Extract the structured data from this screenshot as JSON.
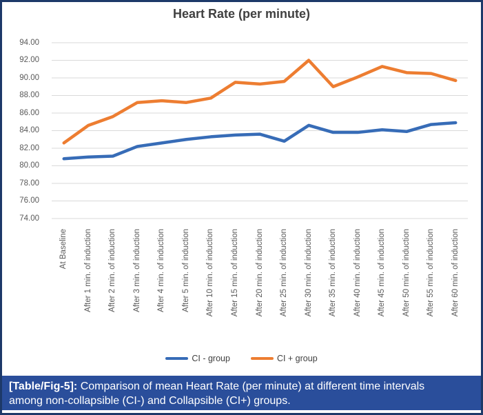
{
  "figure": {
    "title": "Heart Rate (per minute)"
  },
  "chart_data": {
    "type": "line",
    "title": "Heart Rate (per minute)",
    "categories": [
      "At Baseline",
      "After 1 min. of induction",
      "After 2 min. of induction",
      "After 3 min. of induction",
      "After 4 min. of induction",
      "After 5 min. of induction",
      "After 10 min. of induction",
      "After 15 min. of induction",
      "After 20 min. of induction",
      "After 25 min. of induction",
      "After 30 min. of induction",
      "After 35 min. of induction",
      "After 40 min. of induction",
      "After 45 min. of induction",
      "After 50 min. of induction",
      "After 55 min. of induction",
      "After 60 min. of induction"
    ],
    "series": [
      {
        "name": "CI - group",
        "color": "#376cb7",
        "values": [
          80.8,
          81.0,
          81.1,
          82.2,
          82.6,
          83.0,
          83.3,
          83.5,
          83.6,
          82.8,
          84.6,
          83.8,
          83.8,
          84.1,
          83.9,
          84.7,
          84.9
        ]
      },
      {
        "name": "CI + group",
        "color": "#ed7d31",
        "values": [
          82.6,
          84.6,
          85.6,
          87.2,
          87.4,
          87.2,
          87.7,
          89.5,
          89.3,
          89.6,
          92.0,
          89.0,
          90.1,
          91.3,
          90.6,
          90.5,
          89.7
        ]
      }
    ],
    "ylim": [
      74,
      94
    ],
    "ytick_step": 2,
    "ytick_labels": [
      "74.00",
      "76.00",
      "78.00",
      "80.00",
      "82.00",
      "84.00",
      "86.00",
      "88.00",
      "90.00",
      "92.00",
      "94.00"
    ],
    "grid": true,
    "gridline_color": "#d9d9d9",
    "legend_position": "bottom"
  },
  "caption": {
    "label": "[Table/Fig-5]:",
    "text": " Comparison of mean Heart Rate (per minute) at different time intervals among non-collapsible (CI-) and Collapsible (CI+) groups."
  }
}
